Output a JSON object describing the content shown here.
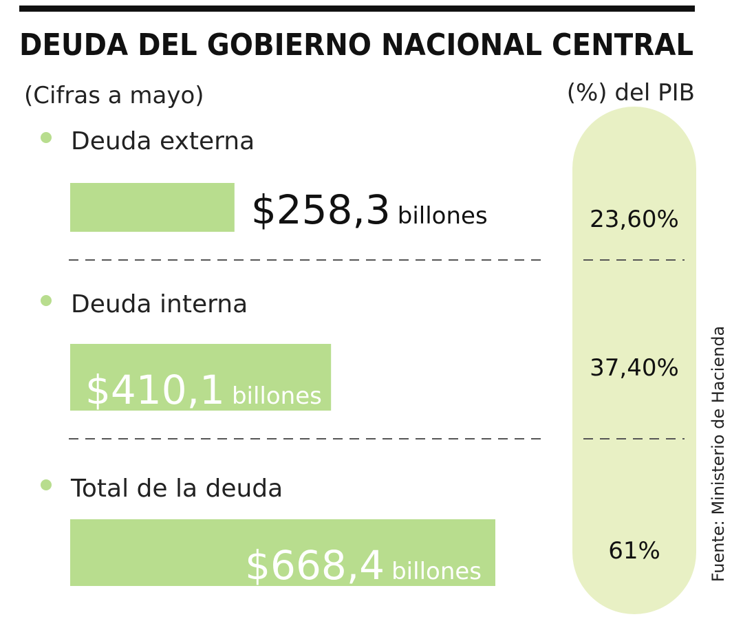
{
  "chart_data": {
    "type": "bar",
    "title": "DEUDA DEL GOBIERNO NACIONAL CENTRAL",
    "subtitle": "(Cifras a mayo)",
    "categories": [
      "Deuda externa",
      "Deuda interna",
      "Total de la deuda"
    ],
    "values": [
      258.3,
      410.1,
      668.4
    ],
    "value_labels": [
      "$258,3",
      "$410,1",
      "$668,4"
    ],
    "unit_label": "billones",
    "color": "#b8dd8e",
    "pib": {
      "name": "(%) del PIB",
      "values": [
        23.6,
        37.4,
        61
      ],
      "value_labels": [
        "23,60%",
        "37,40%",
        "61%"
      ],
      "color": "#e8f0c4"
    },
    "source": "Fuente: Ministerio de Hacienda"
  }
}
